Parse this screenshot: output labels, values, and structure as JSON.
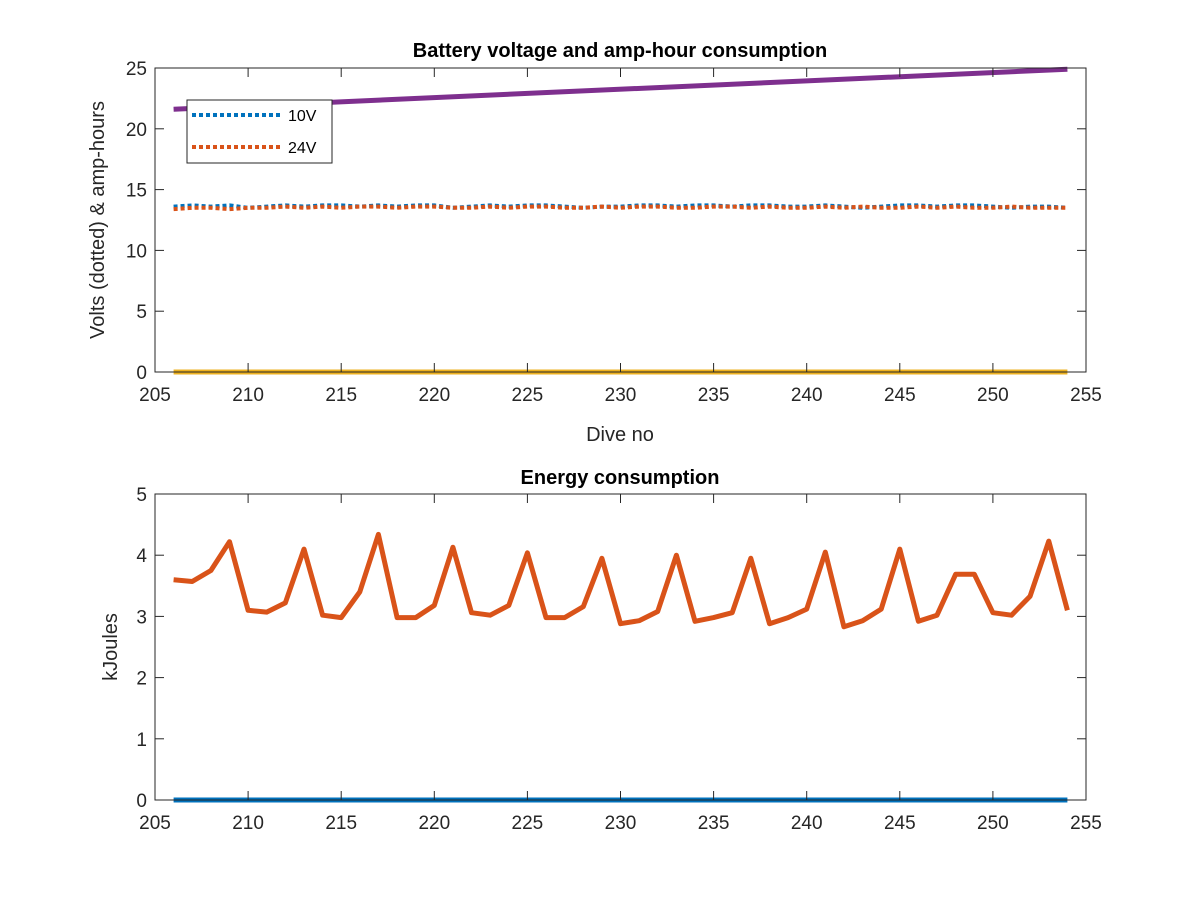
{
  "chart_data": [
    {
      "type": "line",
      "title": "Battery voltage and amp-hour consumption",
      "xlabel": "Dive no",
      "ylabel": "Volts (dotted) & amp-hours",
      "xlim": [
        205,
        255
      ],
      "ylim": [
        0,
        25
      ],
      "xticks": [
        205,
        210,
        215,
        220,
        225,
        230,
        235,
        240,
        245,
        250,
        255
      ],
      "yticks": [
        0,
        5,
        10,
        15,
        20,
        25
      ],
      "grid": false,
      "legend": {
        "placement": "top-left",
        "entries": [
          "10V",
          "24V"
        ]
      },
      "series": [
        {
          "name": "10V",
          "style": "dotted",
          "color": "#0072BD",
          "x": [
            206,
            207,
            208,
            209,
            210,
            211,
            212,
            213,
            214,
            215,
            216,
            217,
            218,
            219,
            220,
            221,
            222,
            223,
            224,
            225,
            226,
            227,
            228,
            229,
            230,
            231,
            232,
            233,
            234,
            235,
            236,
            237,
            238,
            239,
            240,
            241,
            242,
            243,
            244,
            245,
            246,
            247,
            248,
            249,
            250,
            251,
            252,
            253,
            254
          ],
          "values": [
            13.6,
            13.7,
            13.6,
            13.7,
            13.5,
            13.6,
            13.7,
            13.6,
            13.7,
            13.7,
            13.6,
            13.7,
            13.6,
            13.7,
            13.7,
            13.5,
            13.6,
            13.7,
            13.6,
            13.7,
            13.7,
            13.6,
            13.5,
            13.6,
            13.6,
            13.7,
            13.7,
            13.6,
            13.7,
            13.7,
            13.6,
            13.7,
            13.7,
            13.6,
            13.6,
            13.7,
            13.6,
            13.5,
            13.6,
            13.7,
            13.7,
            13.6,
            13.7,
            13.7,
            13.6,
            13.5,
            13.6,
            13.6,
            13.5
          ]
        },
        {
          "name": "24V",
          "style": "dotted",
          "color": "#D95319",
          "x": [
            206,
            207,
            208,
            209,
            210,
            211,
            212,
            213,
            214,
            215,
            216,
            217,
            218,
            219,
            220,
            221,
            222,
            223,
            224,
            225,
            226,
            227,
            228,
            229,
            230,
            231,
            232,
            233,
            234,
            235,
            236,
            237,
            238,
            239,
            240,
            241,
            242,
            243,
            244,
            245,
            246,
            247,
            248,
            249,
            250,
            251,
            252,
            253,
            254
          ],
          "values": [
            13.4,
            13.5,
            13.5,
            13.4,
            13.5,
            13.5,
            13.6,
            13.5,
            13.6,
            13.5,
            13.6,
            13.6,
            13.5,
            13.6,
            13.6,
            13.5,
            13.5,
            13.6,
            13.5,
            13.6,
            13.6,
            13.5,
            13.5,
            13.6,
            13.5,
            13.6,
            13.6,
            13.5,
            13.5,
            13.6,
            13.6,
            13.5,
            13.6,
            13.5,
            13.5,
            13.6,
            13.5,
            13.6,
            13.5,
            13.5,
            13.6,
            13.5,
            13.6,
            13.5,
            13.5,
            13.6,
            13.5,
            13.5,
            13.5
          ]
        },
        {
          "style": "solid",
          "color": "#EDB120",
          "x": [
            206,
            254
          ],
          "values": [
            0,
            0
          ]
        },
        {
          "style": "solid",
          "color": "#7E2F8E",
          "x": [
            206,
            254
          ],
          "values": [
            21.6,
            24.9
          ]
        }
      ]
    },
    {
      "type": "line",
      "title": "Energy consumption",
      "xlabel": "",
      "ylabel": "kJoules",
      "xlim": [
        205,
        255
      ],
      "ylim": [
        0,
        5
      ],
      "xticks": [
        205,
        210,
        215,
        220,
        225,
        230,
        235,
        240,
        245,
        250,
        255
      ],
      "yticks": [
        0,
        1,
        2,
        3,
        4,
        5
      ],
      "grid": false,
      "series": [
        {
          "style": "solid",
          "color": "#0072BD",
          "x": [
            206,
            254
          ],
          "values": [
            0,
            0
          ]
        },
        {
          "style": "solid",
          "color": "#D95319",
          "x": [
            206,
            207,
            208,
            209,
            210,
            211,
            212,
            213,
            214,
            215,
            216,
            217,
            218,
            219,
            220,
            221,
            222,
            223,
            224,
            225,
            226,
            227,
            228,
            229,
            230,
            231,
            232,
            233,
            234,
            235,
            236,
            237,
            238,
            239,
            240,
            241,
            242,
            243,
            244,
            245,
            246,
            247,
            248,
            249,
            250,
            251,
            252,
            253,
            254
          ],
          "values": [
            3.6,
            3.57,
            3.75,
            4.22,
            3.1,
            3.07,
            3.22,
            4.1,
            3.02,
            2.98,
            3.4,
            4.34,
            2.98,
            2.98,
            3.18,
            4.13,
            3.06,
            3.02,
            3.18,
            4.04,
            2.98,
            2.98,
            3.16,
            3.95,
            2.88,
            2.93,
            3.08,
            4.0,
            2.92,
            2.98,
            3.06,
            3.95,
            2.88,
            2.98,
            3.12,
            4.05,
            2.83,
            2.93,
            3.12,
            4.1,
            2.92,
            3.02,
            3.69,
            3.69,
            3.06,
            3.02,
            3.33,
            4.23,
            3.1
          ]
        }
      ]
    }
  ]
}
